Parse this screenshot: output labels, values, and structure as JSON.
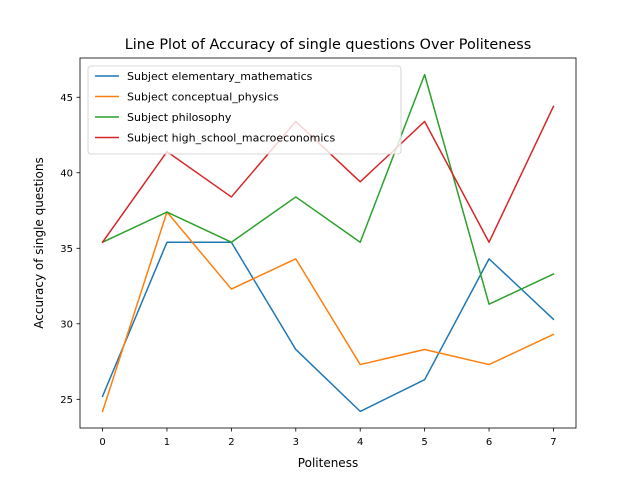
{
  "chart_data": {
    "type": "line",
    "title": "Line Plot of Accuracy of single questions Over Politeness",
    "xlabel": "Politeness",
    "ylabel": "Accuracy of single questions",
    "x": [
      0,
      1,
      2,
      3,
      4,
      5,
      6,
      7
    ],
    "xlim": [
      -0.35,
      7.35
    ],
    "ylim": [
      23.1,
      47.6
    ],
    "xticks": [
      0,
      1,
      2,
      3,
      4,
      5,
      6,
      7
    ],
    "yticks": [
      25,
      30,
      35,
      40,
      45
    ],
    "grid": false,
    "legend_position": "top-left",
    "series": [
      {
        "name": "Subject elementary_mathematics",
        "color": "#1f77b4",
        "values": [
          25.2,
          35.4,
          35.4,
          28.3,
          24.2,
          26.3,
          34.3,
          30.3
        ]
      },
      {
        "name": "Subject conceptual_physics",
        "color": "#ff7f0e",
        "values": [
          24.2,
          37.4,
          32.3,
          34.3,
          27.3,
          28.3,
          27.3,
          29.3
        ]
      },
      {
        "name": "Subject philosophy",
        "color": "#2ca02c",
        "values": [
          35.4,
          37.4,
          35.4,
          38.4,
          35.4,
          46.5,
          31.3,
          33.3
        ]
      },
      {
        "name": "Subject high_school_macroeconomics",
        "color": "#d62728",
        "values": [
          35.4,
          41.4,
          38.4,
          43.4,
          39.4,
          43.4,
          35.4,
          44.4
        ]
      }
    ]
  }
}
